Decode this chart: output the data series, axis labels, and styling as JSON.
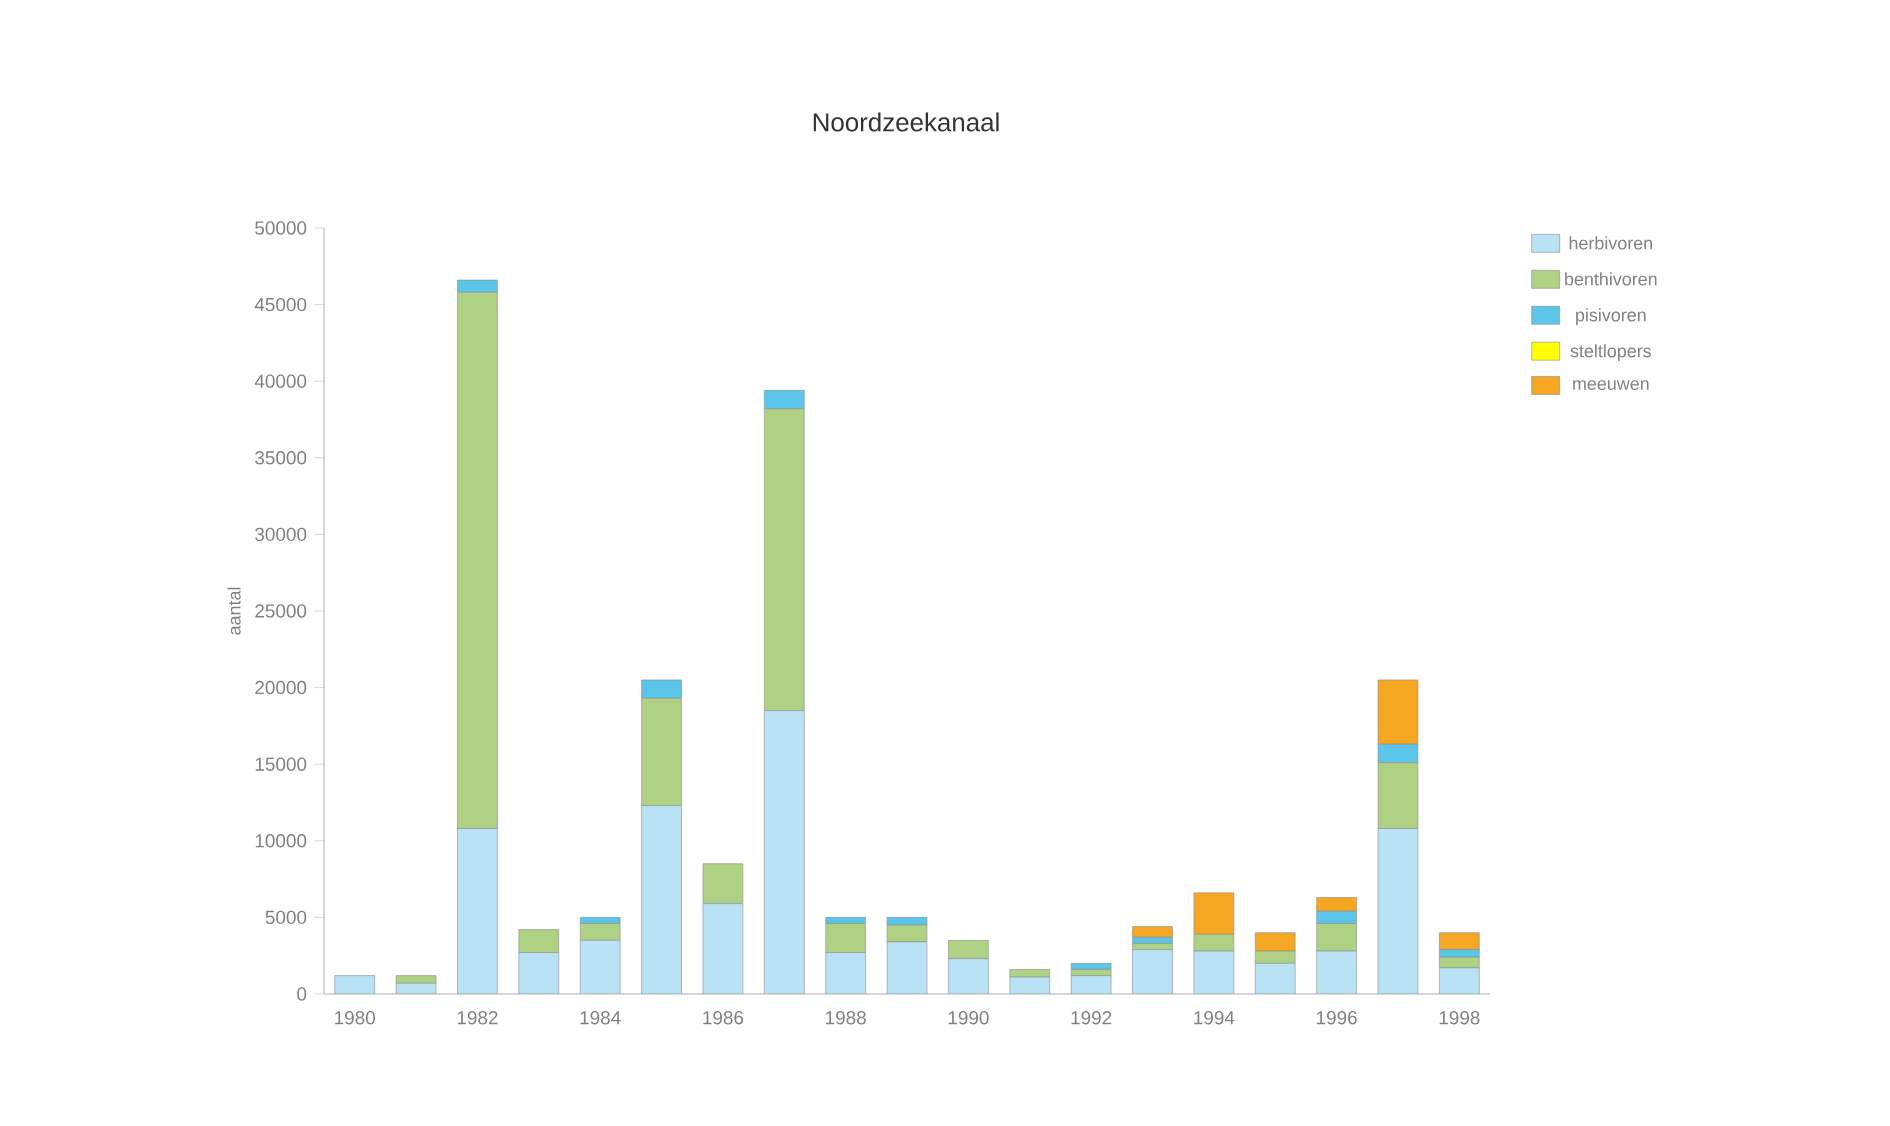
{
  "chart_data": {
    "type": "bar",
    "stacked": true,
    "title": "Noordzeekanaal",
    "ylabel": "aantal",
    "categories": [
      "1980",
      null,
      "1982",
      null,
      "1984",
      null,
      "1986",
      null,
      "1988",
      null,
      "1990",
      null,
      "1992",
      null,
      "1994",
      null,
      "1996",
      null,
      "1998"
    ],
    "series": [
      {
        "name": "herbivoren",
        "color": "#b9e2f4",
        "values": [
          1200,
          700,
          10800,
          2700,
          3500,
          12300,
          5900,
          18500,
          2700,
          3400,
          2300,
          1100,
          1200,
          2900,
          2800,
          2000,
          2800,
          10800,
          1700
        ]
      },
      {
        "name": "benthivoren",
        "color": "#aed184",
        "values": [
          0,
          500,
          35000,
          1500,
          1100,
          7000,
          2600,
          19700,
          1900,
          1100,
          1200,
          500,
          400,
          400,
          1100,
          800,
          1800,
          4300,
          700
        ]
      },
      {
        "name": "pisivoren",
        "color": "#5bc5ea",
        "values": [
          0,
          0,
          800,
          0,
          400,
          1200,
          0,
          1200,
          400,
          500,
          0,
          0,
          400,
          400,
          0,
          0,
          800,
          1200,
          500
        ]
      },
      {
        "name": "steltlopers",
        "color": "#ffff00",
        "values": [
          0,
          0,
          0,
          0,
          0,
          0,
          0,
          0,
          0,
          0,
          0,
          0,
          0,
          0,
          0,
          0,
          0,
          0,
          0
        ]
      },
      {
        "name": "meeuwen",
        "color": "#f5a623",
        "values": [
          0,
          0,
          0,
          0,
          0,
          0,
          0,
          0,
          0,
          0,
          0,
          0,
          0,
          700,
          2700,
          1200,
          900,
          4200,
          1100
        ]
      }
    ],
    "ylim": [
      0,
      50000
    ],
    "yticks": [
      0,
      5000,
      10000,
      15000,
      20000,
      25000,
      30000,
      35000,
      40000,
      45000,
      50000
    ],
    "legend": "top right"
  }
}
